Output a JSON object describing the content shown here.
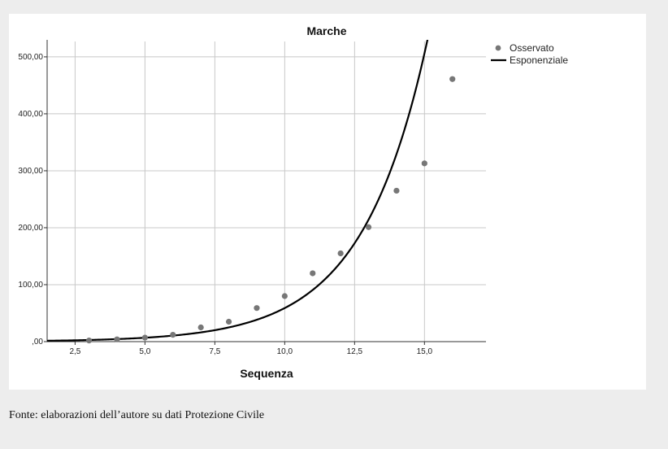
{
  "chart_data": {
    "type": "scatter",
    "title": "Marche",
    "xlabel": "Sequenza",
    "ylabel": "",
    "xlim": [
      1.5,
      17.2
    ],
    "ylim": [
      0,
      527
    ],
    "x_ticks": [
      2.5,
      5.0,
      7.5,
      10.0,
      12.5,
      15.0
    ],
    "x_tick_labels": [
      "2,5",
      "5,0",
      "7,5",
      "10,0",
      "12,5",
      "15,0"
    ],
    "y_ticks": [
      0,
      100,
      200,
      300,
      400,
      500
    ],
    "y_tick_labels": [
      ",00",
      "100,00",
      "200,00",
      "300,00",
      "400,00",
      "500,00"
    ],
    "grid": true,
    "legend_position": "top-right",
    "series": [
      {
        "name": "Osservato",
        "kind": "points",
        "color": "#777777",
        "x": [
          3,
          4,
          5,
          6,
          7,
          8,
          9,
          10,
          11,
          12,
          13,
          14,
          15,
          16
        ],
        "y": [
          2,
          4,
          7,
          12,
          25,
          35,
          59,
          80,
          120,
          155,
          201,
          265,
          313,
          461
        ]
      },
      {
        "name": "Esponenziale",
        "kind": "curve",
        "color": "#000000",
        "model": {
          "a": 0.8,
          "b": 0.43
        }
      }
    ]
  },
  "source_note": "Fonte: elaborazioni dell’autore su dati Protezione Civile"
}
